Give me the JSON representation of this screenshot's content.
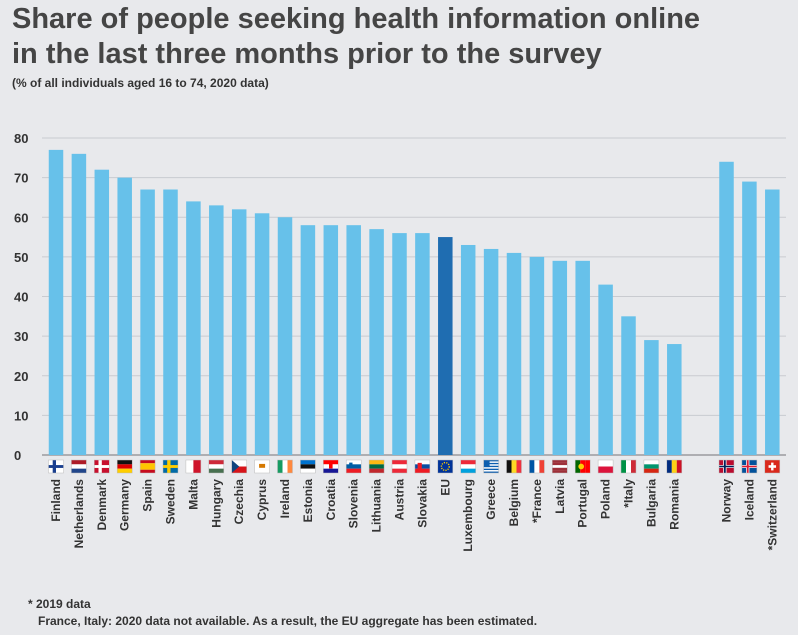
{
  "title_line1": "Share of people seeking health information online",
  "title_line2": "in the last three months prior to the survey",
  "subtitle": "(% of all individuals aged 16 to 74, 2020 data)",
  "footnotes": [
    "* 2019 data",
    "France, Italy: 2020 data not available. As a result, the EU aggregate has been estimated."
  ],
  "colors": {
    "bar": "#67c1ea",
    "highlight": "#1f6db1",
    "grid": "#c9cbd0",
    "background": "#e8e9ec"
  },
  "chart_data": {
    "type": "bar",
    "title": "Share of people seeking health information online in the last three months prior to the survey",
    "subtitle": "(% of all individuals aged 16 to 74, 2020 data)",
    "ylim": [
      0,
      80
    ],
    "yticks": [
      0,
      10,
      20,
      30,
      40,
      50,
      60,
      70,
      80
    ],
    "grid": true,
    "categories": [
      "Finland",
      "Netherlands",
      "Denmark",
      "Germany",
      "Spain",
      "Sweden",
      "Malta",
      "Hungary",
      "Czechia",
      "Cyprus",
      "Ireland",
      "Estonia",
      "Croatia",
      "Slovenia",
      "Lithuania",
      "Austria",
      "Slovakia",
      "EU",
      "Luxembourg",
      "Greece",
      "Belgium",
      "*France",
      "Latvia",
      "Portugal",
      "Poland",
      "*Italy",
      "Bulgaria",
      "Romania",
      "Norway",
      "Iceland",
      "*Switzerland"
    ],
    "values": [
      77,
      76,
      72,
      70,
      67,
      67,
      64,
      63,
      62,
      61,
      60,
      58,
      58,
      58,
      57,
      56,
      56,
      55,
      53,
      52,
      51,
      50,
      49,
      49,
      43,
      35,
      29,
      28,
      74,
      69,
      67
    ],
    "highlight": [
      "EU"
    ],
    "flags": [
      "flag-finland-icon",
      "flag-netherlands-icon",
      "flag-denmark-icon",
      "flag-germany-icon",
      "flag-spain-icon",
      "flag-sweden-icon",
      "flag-malta-icon",
      "flag-hungary-icon",
      "flag-czechia-icon",
      "flag-cyprus-icon",
      "flag-ireland-icon",
      "flag-estonia-icon",
      "flag-croatia-icon",
      "flag-slovenia-icon",
      "flag-lithuania-icon",
      "flag-austria-icon",
      "flag-slovakia-icon",
      "flag-eu-icon",
      "flag-luxembourg-icon",
      "flag-greece-icon",
      "flag-belgium-icon",
      "flag-france-icon",
      "flag-latvia-icon",
      "flag-portugal-icon",
      "flag-poland-icon",
      "flag-italy-icon",
      "flag-bulgaria-icon",
      "flag-romania-icon",
      "flag-norway-icon",
      "flag-iceland-icon",
      "flag-switzerland-icon"
    ]
  }
}
